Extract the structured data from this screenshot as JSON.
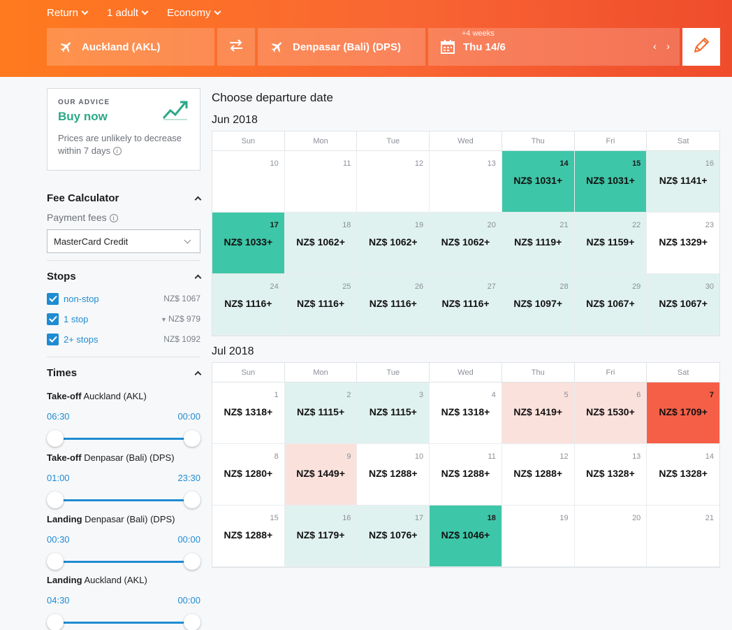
{
  "header": {
    "trip_type": "Return",
    "passengers": "1 adult",
    "cabin": "Economy",
    "origin": "Auckland (AKL)",
    "destination": "Denpasar (Bali) (DPS)",
    "date_hint": "+4 weeks",
    "date": "Thu 14/6",
    "prev": "‹",
    "next": "›"
  },
  "advice": {
    "kicker": "OUR ADVICE",
    "title": "Buy now",
    "description": "Prices are unlikely to decrease within 7 days",
    "info": "i"
  },
  "fees": {
    "title": "Fee Calculator",
    "payment_label": "Payment fees",
    "info": "i",
    "selected": "MasterCard Credit"
  },
  "stops": {
    "title": "Stops",
    "items": [
      {
        "label": "non-stop",
        "price": "NZ$ 1067",
        "cheapest": false
      },
      {
        "label": "1 stop",
        "price": "NZ$ 979",
        "cheapest": true
      },
      {
        "label": "2+ stops",
        "price": "NZ$ 1092",
        "cheapest": false
      }
    ]
  },
  "times": {
    "title": "Times",
    "blocks": [
      {
        "kind": "Take-off",
        "place": "Auckland (AKL)",
        "from": "06:30",
        "to": "00:00"
      },
      {
        "kind": "Take-off",
        "place": "Denpasar (Bali) (DPS)",
        "from": "01:00",
        "to": "23:30"
      },
      {
        "kind": "Landing",
        "place": "Denpasar (Bali) (DPS)",
        "from": "00:30",
        "to": "00:00"
      },
      {
        "kind": "Landing",
        "place": "Auckland (AKL)",
        "from": "04:30",
        "to": "00:00"
      }
    ]
  },
  "main": {
    "title": "Choose departure date",
    "weekdays": [
      "Sun",
      "Mon",
      "Tue",
      "Wed",
      "Thu",
      "Fri",
      "Sat"
    ],
    "months": [
      {
        "name": "Jun 2018",
        "weeks": [
          [
            {
              "day": "10",
              "price": "",
              "level": "none"
            },
            {
              "day": "11",
              "price": "",
              "level": "none"
            },
            {
              "day": "12",
              "price": "",
              "level": "none"
            },
            {
              "day": "13",
              "price": "",
              "level": "none"
            },
            {
              "day": "14",
              "price": "NZ$ 1031+",
              "level": "dark"
            },
            {
              "day": "15",
              "price": "NZ$ 1031+",
              "level": "dark"
            },
            {
              "day": "16",
              "price": "NZ$ 1141+",
              "level": "light"
            }
          ],
          [
            {
              "day": "17",
              "price": "NZ$ 1033+",
              "level": "dark"
            },
            {
              "day": "18",
              "price": "NZ$ 1062+",
              "level": "light"
            },
            {
              "day": "19",
              "price": "NZ$ 1062+",
              "level": "light"
            },
            {
              "day": "20",
              "price": "NZ$ 1062+",
              "level": "light"
            },
            {
              "day": "21",
              "price": "NZ$ 1119+",
              "level": "light"
            },
            {
              "day": "22",
              "price": "NZ$ 1159+",
              "level": "light"
            },
            {
              "day": "23",
              "price": "NZ$ 1329+",
              "level": "none"
            }
          ],
          [
            {
              "day": "24",
              "price": "NZ$ 1116+",
              "level": "light"
            },
            {
              "day": "25",
              "price": "NZ$ 1116+",
              "level": "light"
            },
            {
              "day": "26",
              "price": "NZ$ 1116+",
              "level": "light"
            },
            {
              "day": "27",
              "price": "NZ$ 1116+",
              "level": "light"
            },
            {
              "day": "28",
              "price": "NZ$ 1097+",
              "level": "light"
            },
            {
              "day": "29",
              "price": "NZ$ 1067+",
              "level": "light"
            },
            {
              "day": "30",
              "price": "NZ$ 1067+",
              "level": "light"
            }
          ]
        ]
      },
      {
        "name": "Jul 2018",
        "weeks": [
          [
            {
              "day": "1",
              "price": "NZ$ 1318+",
              "level": "none"
            },
            {
              "day": "2",
              "price": "NZ$ 1115+",
              "level": "light"
            },
            {
              "day": "3",
              "price": "NZ$ 1115+",
              "level": "light"
            },
            {
              "day": "4",
              "price": "NZ$ 1318+",
              "level": "none"
            },
            {
              "day": "5",
              "price": "NZ$ 1419+",
              "level": "pink"
            },
            {
              "day": "6",
              "price": "NZ$ 1530+",
              "level": "pink"
            },
            {
              "day": "7",
              "price": "NZ$ 1709+",
              "level": "red"
            }
          ],
          [
            {
              "day": "8",
              "price": "NZ$ 1280+",
              "level": "none"
            },
            {
              "day": "9",
              "price": "NZ$ 1449+",
              "level": "pink"
            },
            {
              "day": "10",
              "price": "NZ$ 1288+",
              "level": "none"
            },
            {
              "day": "11",
              "price": "NZ$ 1288+",
              "level": "none"
            },
            {
              "day": "12",
              "price": "NZ$ 1288+",
              "level": "none"
            },
            {
              "day": "13",
              "price": "NZ$ 1328+",
              "level": "none"
            },
            {
              "day": "14",
              "price": "NZ$ 1328+",
              "level": "none"
            }
          ],
          [
            {
              "day": "15",
              "price": "NZ$ 1288+",
              "level": "none"
            },
            {
              "day": "16",
              "price": "NZ$ 1179+",
              "level": "light"
            },
            {
              "day": "17",
              "price": "NZ$ 1076+",
              "level": "light"
            },
            {
              "day": "18",
              "price": "NZ$ 1046+",
              "level": "dark"
            },
            {
              "day": "19",
              "price": "",
              "level": "none"
            },
            {
              "day": "20",
              "price": "",
              "level": "none"
            },
            {
              "day": "21",
              "price": "",
              "level": "none"
            }
          ]
        ]
      }
    ]
  },
  "colors": {
    "header_start": "#ff7a1e",
    "header_end": "#ef4c2c",
    "cheap_dark": "#3ec6a8",
    "cheap_light": "#e0f2ef",
    "expensive_light": "#fbe1dc",
    "expensive_dark": "#f65f47",
    "accent_blue": "#1f8cd1",
    "advice_green": "#2aa887"
  }
}
